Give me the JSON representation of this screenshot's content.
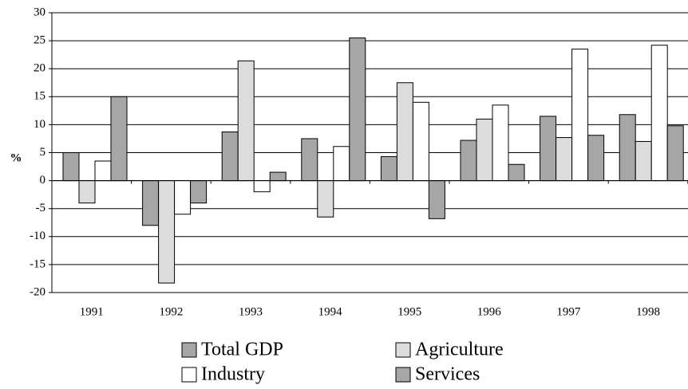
{
  "chart_data": {
    "type": "bar",
    "ylabel": "%",
    "categories": [
      "1991",
      "1992",
      "1993",
      "1994",
      "1995",
      "1996",
      "1997",
      "1998"
    ],
    "series": [
      {
        "name": "Total GDP",
        "color": "#a6a6a6",
        "values": [
          5,
          -8,
          8.7,
          7.5,
          4.3,
          7.2,
          11.5,
          11.8
        ]
      },
      {
        "name": "Agriculture",
        "color": "#dcdcdc",
        "values": [
          -4,
          -18.3,
          21.4,
          -6.5,
          17.5,
          11,
          7.7,
          7
        ]
      },
      {
        "name": "Industry",
        "color": "#ffffff",
        "values": [
          3.5,
          -6,
          -2,
          6.1,
          14,
          13.5,
          23.5,
          24.2
        ]
      },
      {
        "name": "Services",
        "color": "#a6a6a6",
        "values": [
          15,
          -4,
          1.5,
          25.5,
          -6.8,
          2.9,
          8.1,
          9.8
        ]
      }
    ],
    "ylim": [
      -20,
      30
    ],
    "yticks": [
      -20,
      -15,
      -10,
      -5,
      0,
      5,
      10,
      15,
      20,
      25,
      30
    ],
    "grid": true
  }
}
